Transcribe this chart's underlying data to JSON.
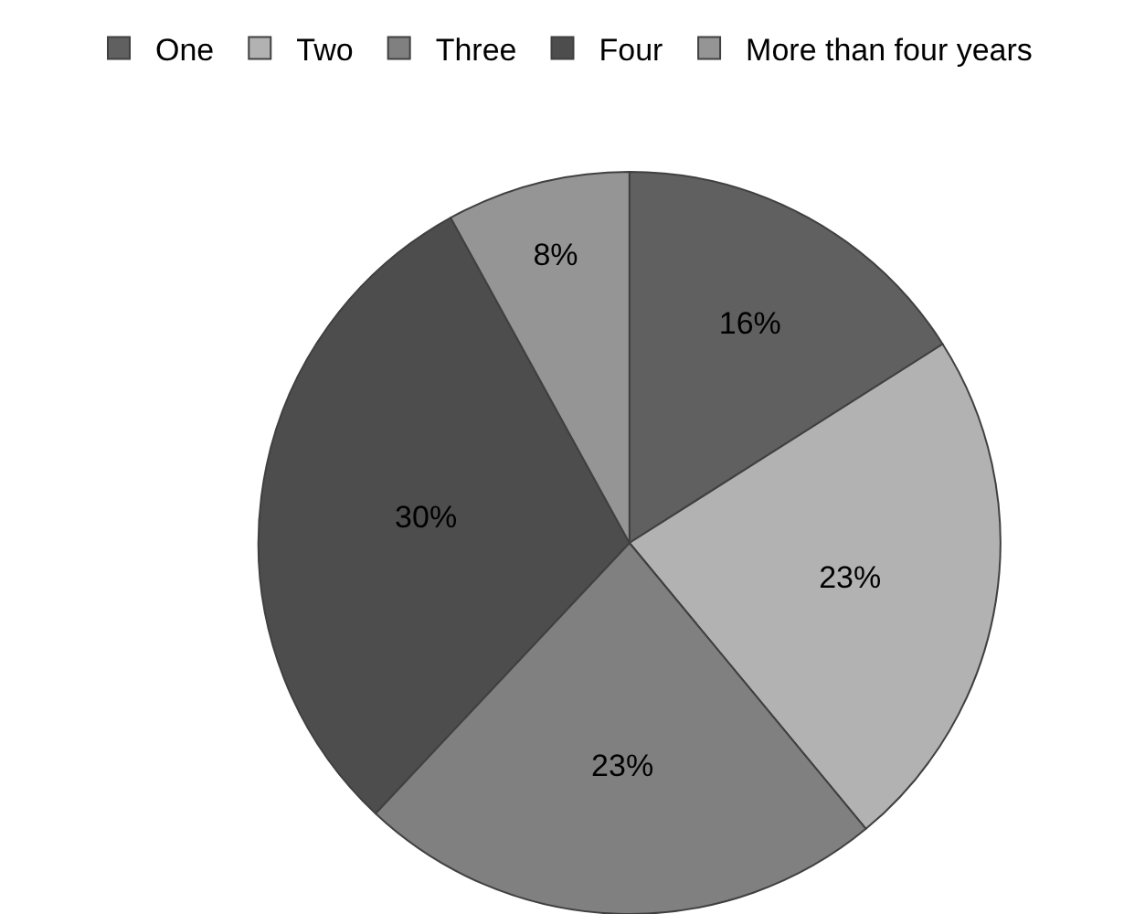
{
  "chart_data": {
    "type": "pie",
    "categories": [
      "One",
      "Two",
      "Three",
      "Four",
      "More than four years"
    ],
    "values": [
      16,
      23,
      23,
      30,
      8
    ],
    "value_labels": [
      "16%",
      "23%",
      "23%",
      "30%",
      "8%"
    ],
    "colors": [
      "#606060",
      "#b2b2b2",
      "#808080",
      "#4d4d4d",
      "#959595"
    ],
    "legend": "top"
  }
}
